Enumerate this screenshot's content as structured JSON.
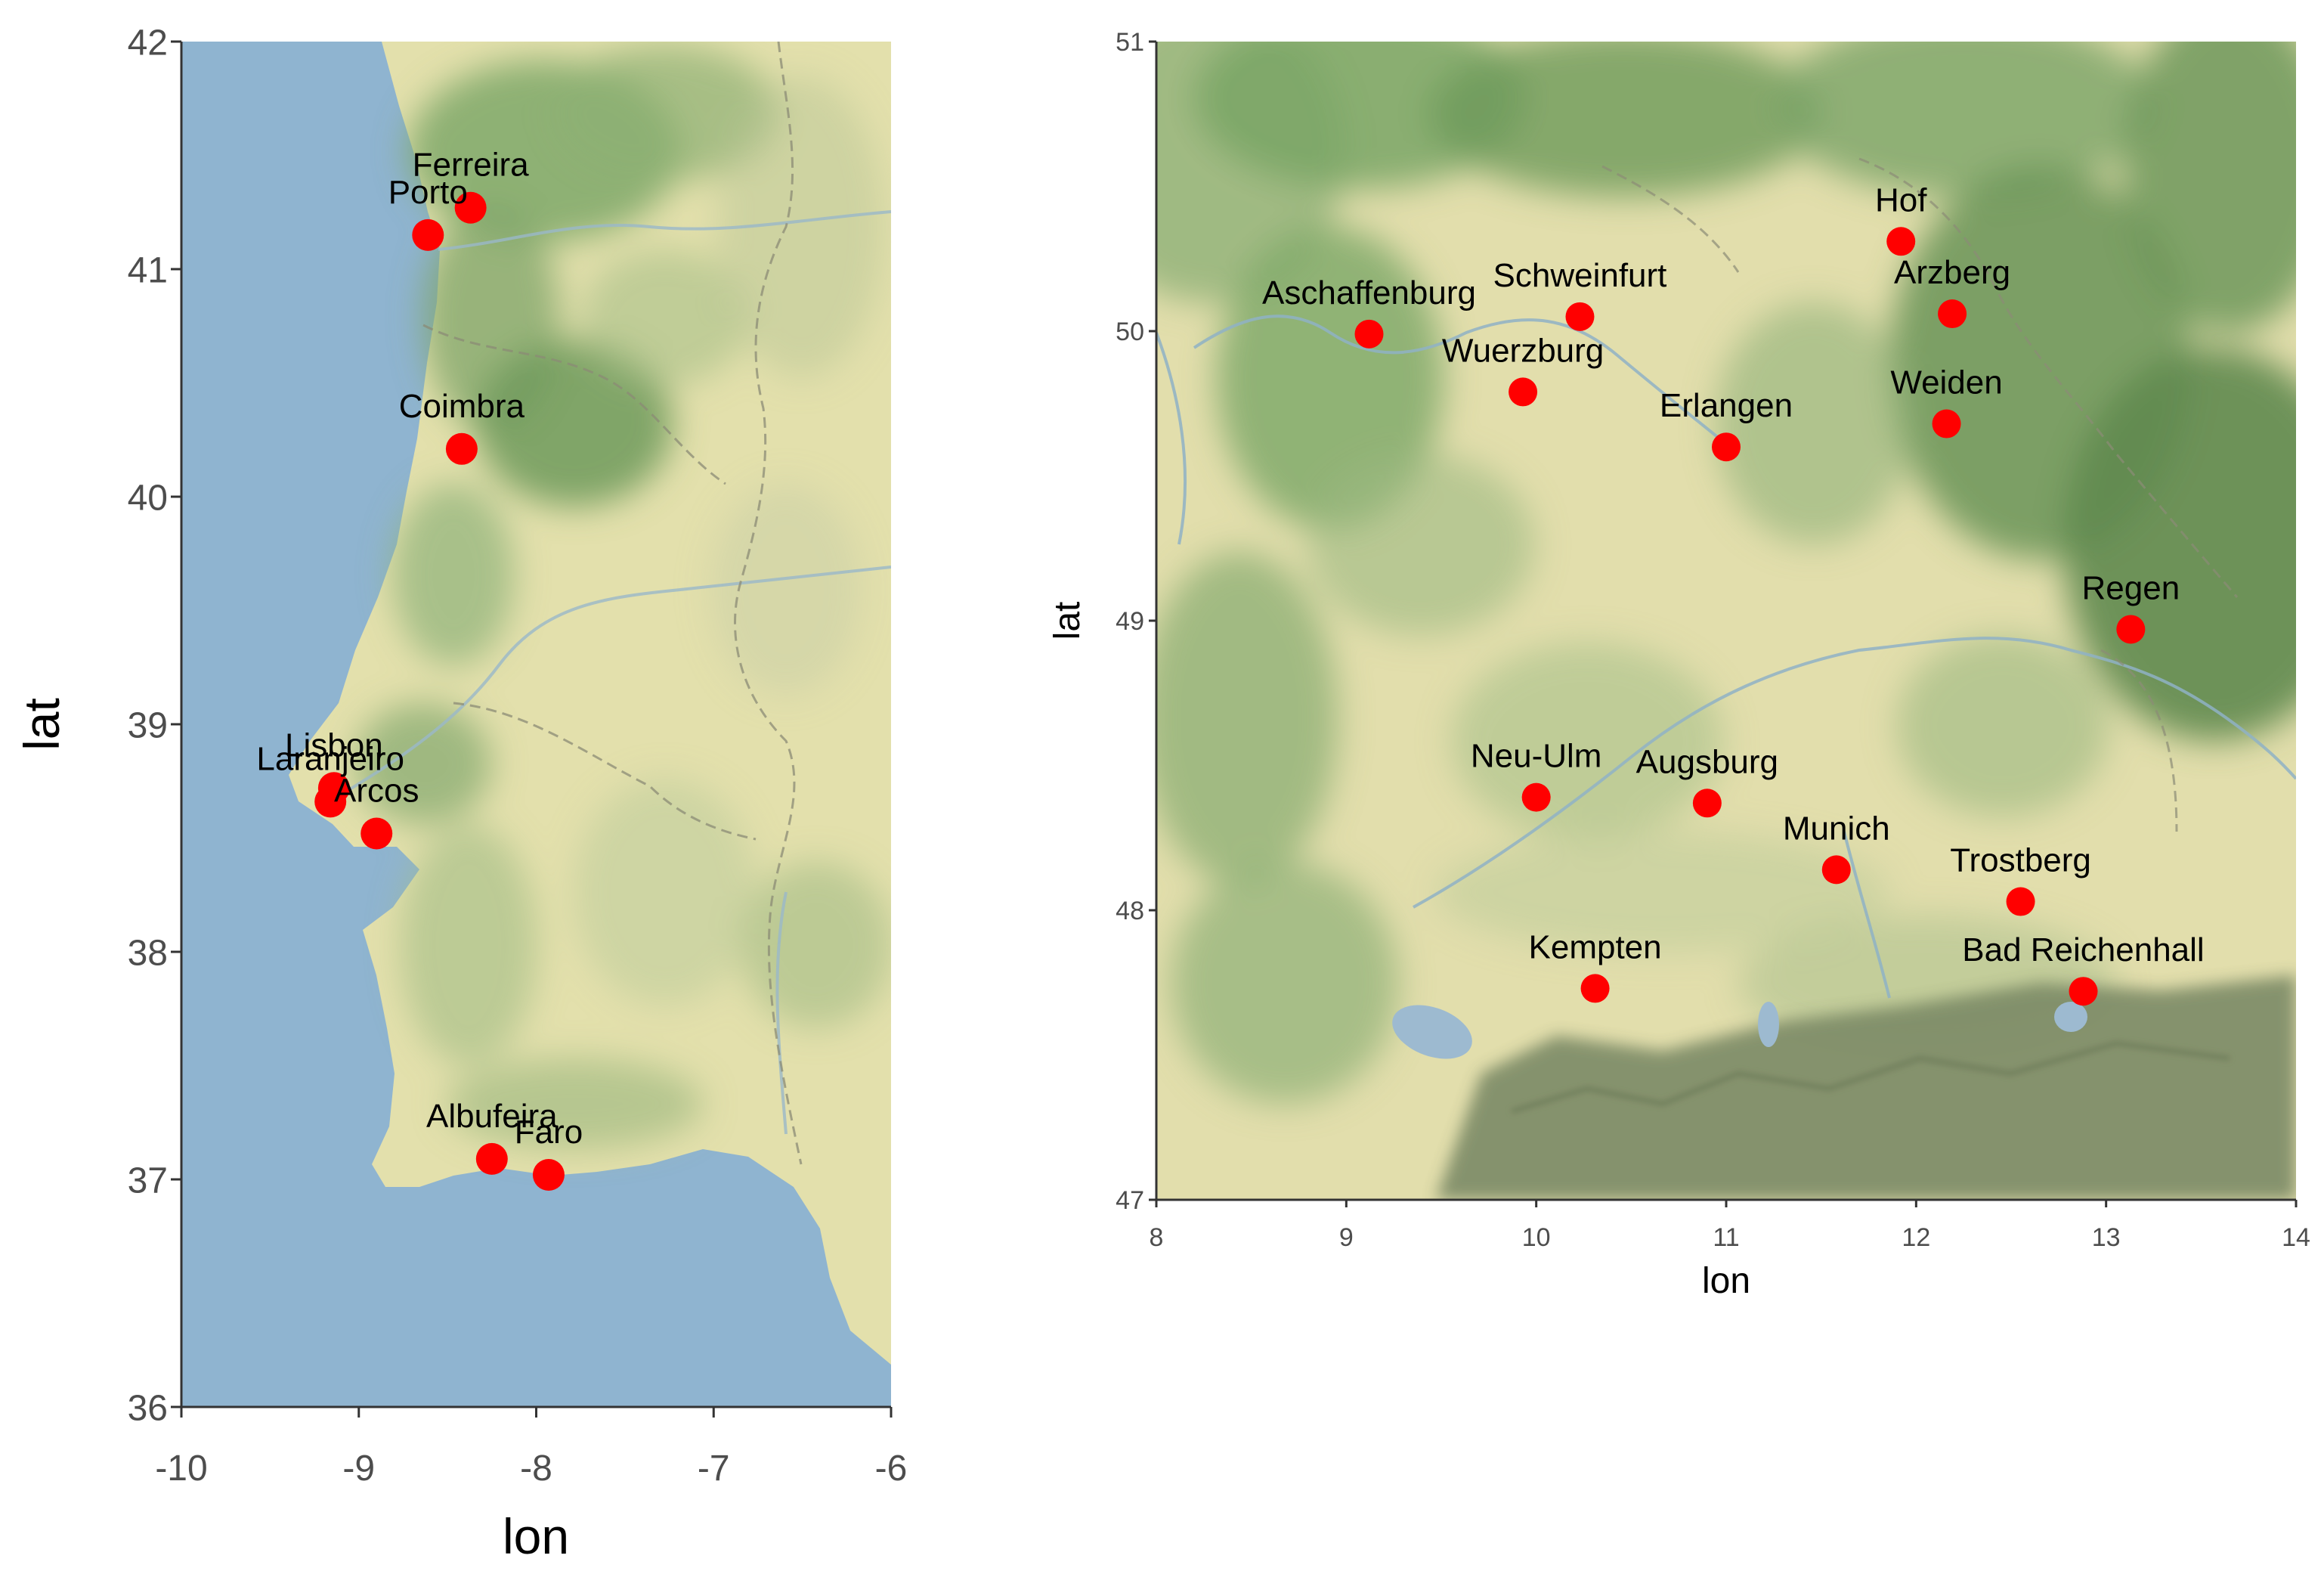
{
  "colors": {
    "point": "#ff0000",
    "sea": "#8fb4d0",
    "land_light": "#e6e4b4",
    "land_green": "#a9c08c",
    "land_dark": "#6f935c",
    "mountain": "#7d8a6a",
    "tick": "#4d4d4d"
  },
  "maps": [
    {
      "id": "portugal",
      "xlabel": "lon",
      "ylabel": "lat",
      "xlim": [
        -10,
        -6
      ],
      "ylim": [
        36,
        42
      ],
      "xticks": [
        -10,
        -9,
        -8,
        -7,
        -6
      ],
      "yticks": [
        36,
        37,
        38,
        39,
        40,
        41,
        42
      ],
      "cities": [
        {
          "name": "Ferreira",
          "lon": -8.37,
          "lat": 41.27
        },
        {
          "name": "Porto",
          "lon": -8.61,
          "lat": 41.15
        },
        {
          "name": "Coimbra",
          "lon": -8.42,
          "lat": 40.21
        },
        {
          "name": "Lisbon",
          "lon": -9.14,
          "lat": 38.72
        },
        {
          "name": "Laranjeiro",
          "lon": -9.16,
          "lat": 38.66
        },
        {
          "name": "Arcos",
          "lon": -8.9,
          "lat": 38.52
        },
        {
          "name": "Albufeira",
          "lon": -8.25,
          "lat": 37.09
        },
        {
          "name": "Faro",
          "lon": -7.93,
          "lat": 37.02
        }
      ]
    },
    {
      "id": "bavaria",
      "xlabel": "lon",
      "ylabel": "lat",
      "xlim": [
        8,
        14
      ],
      "ylim": [
        47,
        51
      ],
      "xticks": [
        8,
        9,
        10,
        11,
        12,
        13,
        14
      ],
      "yticks": [
        47,
        48,
        49,
        50,
        51
      ],
      "cities": [
        {
          "name": "Hof",
          "lon": 11.92,
          "lat": 50.31
        },
        {
          "name": "Schweinfurt",
          "lon": 10.23,
          "lat": 50.05
        },
        {
          "name": "Aschaffenburg",
          "lon": 9.12,
          "lat": 49.99
        },
        {
          "name": "Arzberg",
          "lon": 12.19,
          "lat": 50.06
        },
        {
          "name": "Wuerzburg",
          "lon": 9.93,
          "lat": 49.79
        },
        {
          "name": "Erlangen",
          "lon": 11.0,
          "lat": 49.6
        },
        {
          "name": "Weiden",
          "lon": 12.16,
          "lat": 49.68
        },
        {
          "name": "Regen",
          "lon": 13.13,
          "lat": 48.97
        },
        {
          "name": "Neu-Ulm",
          "lon": 10.0,
          "lat": 48.39
        },
        {
          "name": "Augsburg",
          "lon": 10.9,
          "lat": 48.37
        },
        {
          "name": "Munich",
          "lon": 11.58,
          "lat": 48.14
        },
        {
          "name": "Trostberg",
          "lon": 12.55,
          "lat": 48.03
        },
        {
          "name": "Kempten",
          "lon": 10.31,
          "lat": 47.73
        },
        {
          "name": "Bad Reichenhall",
          "lon": 12.88,
          "lat": 47.72
        }
      ]
    }
  ]
}
